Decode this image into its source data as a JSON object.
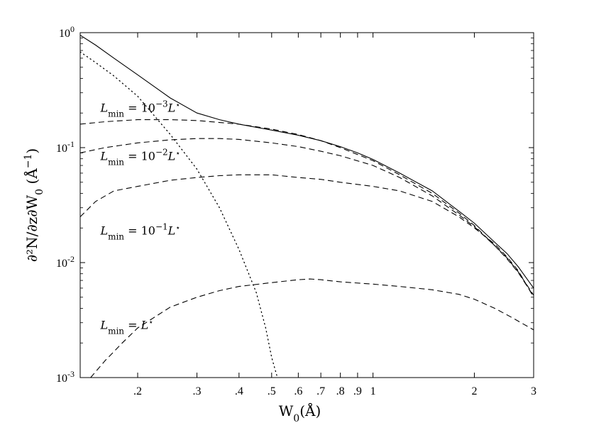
{
  "chart_data": {
    "type": "line",
    "x_scale": "log",
    "y_scale": "log",
    "xlim": [
      0.135,
      3.0
    ],
    "ylim": [
      0.001,
      1.0
    ],
    "grid": false,
    "legend": "none",
    "xlabel": {
      "base": "W",
      "sub": "0",
      "rest": "(Å)"
    },
    "ylabel": {
      "text": "∂²N/∂z∂W",
      "sub": "0",
      "rest": " (Å",
      "sup": "−1",
      "close": ")"
    },
    "x_ticks": [
      {
        "value": 0.2,
        "label": ".2"
      },
      {
        "value": 0.3,
        "label": ".3"
      },
      {
        "value": 0.4,
        "label": ".4"
      },
      {
        "value": 0.5,
        "label": ".5"
      },
      {
        "value": 0.6,
        "label": ".6"
      },
      {
        "value": 0.7,
        "label": ".7"
      },
      {
        "value": 0.8,
        "label": ".8"
      },
      {
        "value": 0.9,
        "label": ".9"
      },
      {
        "value": 1.0,
        "label": "1"
      },
      {
        "value": 2.0,
        "label": "2"
      },
      {
        "value": 3.0,
        "label": "3"
      }
    ],
    "y_ticks": [
      {
        "value": 1.0,
        "base": "10",
        "exp": "0"
      },
      {
        "value": 0.1,
        "base": "10",
        "exp": "-1"
      },
      {
        "value": 0.01,
        "base": "10",
        "exp": "-2"
      },
      {
        "value": 0.001,
        "base": "10",
        "exp": "-3"
      }
    ],
    "annotations": [
      {
        "text": "L",
        "sub": "min",
        "eq": " = 10",
        "exp": "−3",
        "tail": "L",
        "star": "⋆",
        "x": 0.155,
        "y": 0.205
      },
      {
        "text": "L",
        "sub": "min",
        "eq": " = 10",
        "exp": "−2",
        "tail": "L",
        "star": "⋆",
        "x": 0.155,
        "y": 0.078
      },
      {
        "text": "L",
        "sub": "min",
        "eq": " = 10",
        "exp": "−1",
        "tail": "L",
        "star": "⋆",
        "x": 0.155,
        "y": 0.0175
      },
      {
        "text": "L",
        "sub": "min",
        "eq": " = ",
        "exp": "",
        "tail": "L",
        "star": "⋆",
        "x": 0.155,
        "y": 0.00265
      }
    ],
    "series": [
      {
        "style": "solid",
        "color": "#000000",
        "points": [
          [
            0.135,
            0.95
          ],
          [
            0.15,
            0.78
          ],
          [
            0.17,
            0.6
          ],
          [
            0.2,
            0.43
          ],
          [
            0.25,
            0.27
          ],
          [
            0.3,
            0.2
          ],
          [
            0.35,
            0.175
          ],
          [
            0.4,
            0.16
          ],
          [
            0.5,
            0.142
          ],
          [
            0.6,
            0.128
          ],
          [
            0.7,
            0.115
          ],
          [
            0.8,
            0.102
          ],
          [
            0.9,
            0.09
          ],
          [
            1.0,
            0.079
          ],
          [
            1.2,
            0.06
          ],
          [
            1.5,
            0.042
          ],
          [
            1.8,
            0.028
          ],
          [
            2.0,
            0.022
          ],
          [
            2.3,
            0.015
          ],
          [
            2.5,
            0.012
          ],
          [
            2.7,
            0.0092
          ],
          [
            3.0,
            0.006
          ]
        ]
      },
      {
        "style": "dashed",
        "color": "#000000",
        "points": [
          [
            0.135,
            0.16
          ],
          [
            0.16,
            0.168
          ],
          [
            0.2,
            0.175
          ],
          [
            0.25,
            0.175
          ],
          [
            0.3,
            0.172
          ],
          [
            0.4,
            0.16
          ],
          [
            0.5,
            0.145
          ],
          [
            0.6,
            0.13
          ],
          [
            0.7,
            0.115
          ],
          [
            0.8,
            0.1
          ],
          [
            1.0,
            0.077
          ],
          [
            1.2,
            0.058
          ],
          [
            1.5,
            0.04
          ],
          [
            1.8,
            0.027
          ],
          [
            2.0,
            0.021
          ],
          [
            2.3,
            0.014
          ],
          [
            2.5,
            0.011
          ],
          [
            2.7,
            0.0083
          ],
          [
            3.0,
            0.0052
          ]
        ]
      },
      {
        "style": "dashed",
        "color": "#000000",
        "points": [
          [
            0.135,
            0.09
          ],
          [
            0.16,
            0.1
          ],
          [
            0.2,
            0.11
          ],
          [
            0.25,
            0.117
          ],
          [
            0.3,
            0.12
          ],
          [
            0.35,
            0.12
          ],
          [
            0.4,
            0.118
          ],
          [
            0.5,
            0.11
          ],
          [
            0.6,
            0.102
          ],
          [
            0.7,
            0.093
          ],
          [
            0.8,
            0.085
          ],
          [
            1.0,
            0.07
          ],
          [
            1.2,
            0.055
          ],
          [
            1.5,
            0.038
          ],
          [
            1.8,
            0.026
          ],
          [
            2.0,
            0.0205
          ],
          [
            2.3,
            0.014
          ],
          [
            2.5,
            0.0108
          ],
          [
            2.7,
            0.0082
          ],
          [
            3.0,
            0.0051
          ]
        ]
      },
      {
        "style": "dashed",
        "color": "#000000",
        "points": [
          [
            0.135,
            0.025
          ],
          [
            0.15,
            0.034
          ],
          [
            0.17,
            0.042
          ],
          [
            0.2,
            0.046
          ],
          [
            0.25,
            0.052
          ],
          [
            0.3,
            0.055
          ],
          [
            0.35,
            0.057
          ],
          [
            0.4,
            0.058
          ],
          [
            0.5,
            0.058
          ],
          [
            0.6,
            0.055
          ],
          [
            0.7,
            0.053
          ],
          [
            0.8,
            0.05
          ],
          [
            1.0,
            0.046
          ],
          [
            1.2,
            0.042
          ],
          [
            1.5,
            0.034
          ],
          [
            1.8,
            0.025
          ],
          [
            2.0,
            0.02
          ],
          [
            2.3,
            0.0145
          ],
          [
            2.5,
            0.0112
          ],
          [
            2.7,
            0.0085
          ],
          [
            3.0,
            0.005
          ]
        ]
      },
      {
        "style": "dashed",
        "color": "#000000",
        "points": [
          [
            0.145,
            0.001
          ],
          [
            0.16,
            0.0014
          ],
          [
            0.18,
            0.002
          ],
          [
            0.2,
            0.0027
          ],
          [
            0.25,
            0.0041
          ],
          [
            0.3,
            0.005
          ],
          [
            0.35,
            0.0057
          ],
          [
            0.4,
            0.0062
          ],
          [
            0.5,
            0.0067
          ],
          [
            0.6,
            0.0071
          ],
          [
            0.65,
            0.0072
          ],
          [
            0.7,
            0.0071
          ],
          [
            0.8,
            0.0068
          ],
          [
            1.0,
            0.0065
          ],
          [
            1.2,
            0.0062
          ],
          [
            1.5,
            0.0058
          ],
          [
            1.8,
            0.0053
          ],
          [
            2.0,
            0.0048
          ],
          [
            2.3,
            0.004
          ],
          [
            2.6,
            0.0033
          ],
          [
            3.0,
            0.0026
          ]
        ]
      },
      {
        "style": "dotted",
        "color": "#000000",
        "points": [
          [
            0.135,
            0.68
          ],
          [
            0.15,
            0.55
          ],
          [
            0.17,
            0.42
          ],
          [
            0.2,
            0.28
          ],
          [
            0.25,
            0.13
          ],
          [
            0.3,
            0.065
          ],
          [
            0.35,
            0.03
          ],
          [
            0.4,
            0.013
          ],
          [
            0.45,
            0.0055
          ],
          [
            0.48,
            0.0027
          ],
          [
            0.5,
            0.0015
          ],
          [
            0.52,
            0.001
          ]
        ]
      }
    ]
  }
}
